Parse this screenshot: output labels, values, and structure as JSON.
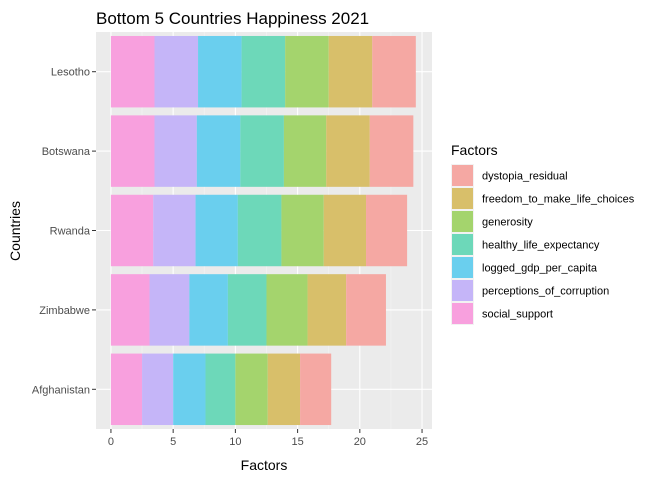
{
  "chart_data": {
    "type": "bar",
    "orientation": "horizontal",
    "stacked": true,
    "title": "Bottom 5 Countries Happiness 2021",
    "xlabel": "Factors",
    "ylabel": "Countries",
    "xlim": [
      -1.2,
      25.8
    ],
    "x_ticks": [
      "0",
      "5",
      "10",
      "15",
      "20",
      "25"
    ],
    "x_tick_values": [
      0,
      5,
      10,
      15,
      20,
      25
    ],
    "categories": [
      "Lesotho",
      "Botswana",
      "Rwanda",
      "Zimbabwe",
      "Afghanistan"
    ],
    "grid": true,
    "legend": {
      "title": "Factors",
      "position": "right"
    },
    "series": [
      {
        "name": "social_support",
        "color": "#F8A0DE",
        "values": [
          3.5,
          3.5,
          3.4,
          3.1,
          2.5
        ]
      },
      {
        "name": "perceptions_of_corruption",
        "color": "#C5B5F8",
        "values": [
          3.5,
          3.4,
          3.4,
          3.2,
          2.5
        ]
      },
      {
        "name": "logged_gdp_per_capita",
        "color": "#6ACFEE",
        "values": [
          3.5,
          3.5,
          3.4,
          3.1,
          2.6
        ]
      },
      {
        "name": "healthy_life_expectancy",
        "color": "#6DD8B9",
        "values": [
          3.5,
          3.5,
          3.5,
          3.1,
          2.4
        ]
      },
      {
        "name": "generosity",
        "color": "#A4D46D",
        "values": [
          3.5,
          3.4,
          3.4,
          3.3,
          2.6
        ]
      },
      {
        "name": "freedom_to_make_life_choices",
        "color": "#D8BF6A",
        "values": [
          3.5,
          3.5,
          3.4,
          3.1,
          2.6
        ]
      },
      {
        "name": "dystopia_residual",
        "color": "#F5A8A3",
        "values": [
          3.5,
          3.5,
          3.3,
          3.2,
          2.5
        ]
      }
    ]
  }
}
